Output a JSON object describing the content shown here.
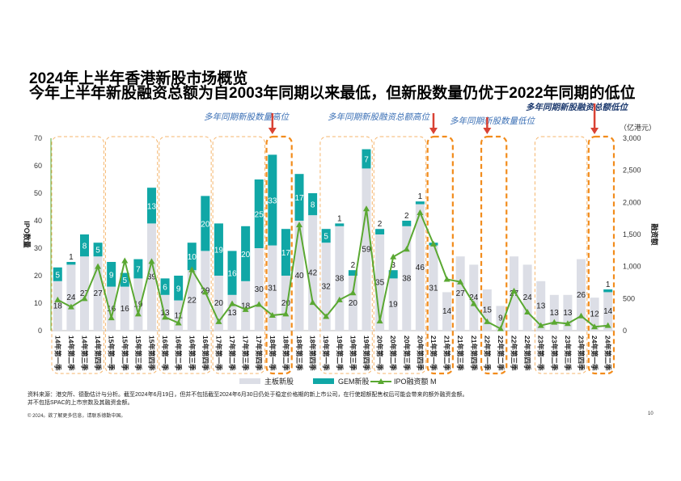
{
  "header": {
    "title": "2024年上半年香港新股市场概览",
    "subtitle": "今年上半年新股融资总额为自2003年同期以来最低，但新股数量仍优于2022年同期的低位"
  },
  "annotations": [
    {
      "text": "多年同期新股数量高位",
      "color": "#3a6fb5",
      "bold": false
    },
    {
      "text": "多年同期新股融资总额高位",
      "color": "#3a6fb5",
      "bold": false
    },
    {
      "text": "多年同期新股数量低位",
      "color": "#3a6fb5",
      "bold": false
    },
    {
      "text": "多年同期新股融资总额低位",
      "color": "#1f3c70",
      "bold": true
    }
  ],
  "chart_data": {
    "type": "bar",
    "categories": [
      "14年第一季",
      "14年第二季",
      "14年第三季",
      "14年第四季",
      "15年第一季",
      "15年第二季",
      "15年第三季",
      "15年第四季",
      "16年第一季",
      "16年第二季",
      "16年第三季",
      "16年第四季",
      "17年第一季",
      "17年第二季",
      "17年第三季",
      "17年第四季",
      "18年第一季",
      "18年第二季",
      "18年第三季",
      "18年第四季",
      "19年第一季",
      "19年第二季",
      "19年第三季",
      "19年第四季",
      "20年第一季",
      "20年第二季",
      "20年第三季",
      "20年第四季",
      "21年第一季",
      "21年第二季",
      "21年第三季",
      "21年第四季",
      "22年第一季",
      "22年第二季",
      "22年第三季",
      "22年第四季",
      "23年第一季",
      "23年第二季",
      "23年第三季",
      "23年第四季",
      "24年第一季",
      "24年第二季"
    ],
    "series": [
      {
        "name": "主板新股",
        "type": "bar",
        "color": "#dcdee6",
        "values": [
          18,
          24,
          27,
          27,
          16,
          16,
          19,
          39,
          13,
          11,
          22,
          29,
          20,
          13,
          18,
          30,
          31,
          20,
          40,
          42,
          32,
          38,
          20,
          59,
          35,
          19,
          38,
          46,
          31,
          14,
          27,
          24,
          15,
          9,
          27,
          24,
          18,
          13,
          13,
          26,
          12,
          14
        ]
      },
      {
        "name": "GEM新股",
        "type": "bar",
        "color": "#10a7a6",
        "values": [
          5,
          1,
          8,
          5,
          9,
          5,
          7,
          13,
          6,
          9,
          10,
          20,
          19,
          16,
          20,
          25,
          33,
          17,
          17,
          8,
          5,
          1,
          2,
          7,
          2,
          3,
          2,
          1,
          1,
          0,
          0,
          0,
          0,
          0,
          0,
          0,
          0,
          0,
          0,
          0,
          0,
          1
        ]
      },
      {
        "name": "IPO融资额 M",
        "type": "line",
        "color": "#5aa832",
        "axis": "right",
        "values": [
          480,
          370,
          500,
          1000,
          200,
          1090,
          260,
          1080,
          210,
          120,
          950,
          600,
          140,
          420,
          330,
          410,
          240,
          260,
          1650,
          440,
          220,
          480,
          590,
          1900,
          150,
          1150,
          1270,
          1840,
          1350,
          800,
          760,
          420,
          140,
          30,
          620,
          290,
          80,
          130,
          110,
          230,
          60,
          80
        ]
      }
    ],
    "bar_labels": [
      {
        "main": "18",
        "gem": "5"
      },
      {
        "main": "24",
        "gem": "1"
      },
      {
        "main": "27",
        "gem": "8"
      },
      {
        "main": "27",
        "gem": "5"
      },
      {
        "main": "16",
        "gem": "9"
      },
      {
        "main": "16",
        "gem": "5"
      },
      {
        "main": "19",
        "gem": "7"
      },
      {
        "main": "39",
        "gem": "13"
      },
      {
        "main": "13",
        "gem": "6"
      },
      {
        "main": "11",
        "gem": "9"
      },
      {
        "main": "22",
        "gem": "10"
      },
      {
        "main": "29",
        "gem": "20"
      },
      {
        "main": "20",
        "gem": "19"
      },
      {
        "main": "13",
        "gem": "16"
      },
      {
        "main": "18",
        "gem": "20"
      },
      {
        "main": "30",
        "gem": "25"
      },
      {
        "main": "31",
        "gem": "33"
      },
      {
        "main": "20",
        "gem": "17"
      },
      {
        "main": "40",
        "gem": "17"
      },
      {
        "main": "42",
        "gem": "8"
      },
      {
        "main": "32",
        "gem": "5"
      },
      {
        "main": "38",
        "gem": "1"
      },
      {
        "main": "20",
        "gem": "2"
      },
      {
        "main": "59",
        "gem": "7"
      },
      {
        "main": "35",
        "gem": "2"
      },
      {
        "main": "19",
        "gem": "3"
      },
      {
        "main": "38",
        "gem": "2"
      },
      {
        "main": "46",
        "gem": "1"
      },
      {
        "main": "31",
        "gem": ""
      },
      {
        "main": "14",
        "gem": ""
      },
      {
        "main": "27",
        "gem": ""
      },
      {
        "main": "24",
        "gem": ""
      },
      {
        "main": "15",
        "gem": ""
      },
      {
        "main": "9",
        "gem": ""
      },
      {
        "main": "27",
        "gem": ""
      },
      {
        "main": "24",
        "gem": ""
      },
      {
        "main": "13",
        "gem": ""
      },
      {
        "main": "13",
        "gem": ""
      },
      {
        "main": "13",
        "gem": ""
      },
      {
        "main": "26",
        "gem": ""
      },
      {
        "main": "12",
        "gem": ""
      },
      {
        "main": "14",
        "gem": "1"
      }
    ],
    "ylabel": "IPO数量",
    "y2label": "融资额",
    "y2unit": "（亿港元）",
    "ylim": [
      0,
      70
    ],
    "yticks": [
      "0",
      "10",
      "20",
      "30",
      "40",
      "50",
      "60",
      "70"
    ],
    "y2lim": [
      0,
      3000
    ],
    "y2ticks": [
      "0",
      "500",
      "1,000",
      "1,500",
      "2,000",
      "2,500",
      "3,000"
    ],
    "legend": [
      "主板新股",
      "GEM新股",
      "IPO融资额 M"
    ],
    "legend_position": "bottom",
    "highlights": [
      {
        "quarters": [
          0,
          1,
          2,
          3
        ],
        "style": "dashed-light"
      },
      {
        "quarters": [
          4,
          5,
          6,
          7
        ],
        "style": "dashed-light"
      },
      {
        "quarters": [
          8,
          9,
          10,
          11
        ],
        "style": "dashed-light"
      },
      {
        "quarters": [
          12,
          13,
          14,
          15
        ],
        "style": "dashed-light"
      },
      {
        "quarters": [
          16,
          17
        ],
        "style": "dashed-bold"
      },
      {
        "quarters": [
          20,
          21,
          22,
          23
        ],
        "style": "dashed-light"
      },
      {
        "quarters": [
          24,
          25,
          26,
          27
        ],
        "style": "dashed-light"
      },
      {
        "quarters": [
          28,
          29
        ],
        "style": "dashed-bold"
      },
      {
        "quarters": [
          32,
          33
        ],
        "style": "dashed-bold"
      },
      {
        "quarters": [
          36,
          37,
          38,
          39
        ],
        "style": "dashed-light"
      },
      {
        "quarters": [
          40,
          41
        ],
        "style": "dashed-bold"
      }
    ]
  },
  "footer": {
    "source_line1": "资料来源：港交所、德勤估计与分析。截至2024年6月19日，但并不包括截至2024年6月30日仍处于稳定价格期的新上市公司，在行使超额配售权后可能会带来的额外融资金额。",
    "source_line2": "并不包括SPAC的上市宗数及其融资金额。",
    "copyright": "© 2024。欲了解更多信息，请联系德勤中国。",
    "page_number": "10"
  }
}
